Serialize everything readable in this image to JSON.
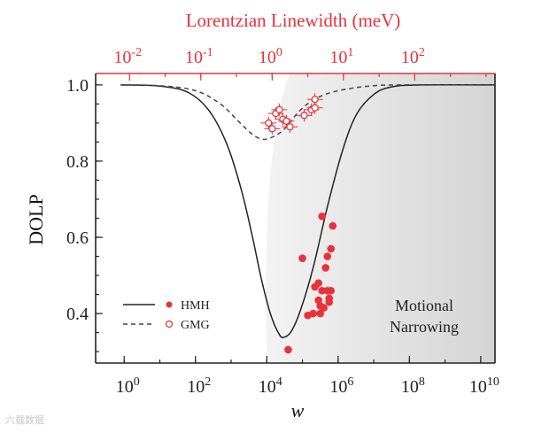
{
  "chart_data": {
    "type": "scatter",
    "title": "",
    "xlabel": "w",
    "ylabel": "DOLP",
    "top_xlabel": "Lorentzian Linewidth (meV)",
    "xscale": "log10",
    "xlim_log10": [
      -0.8,
      10.4
    ],
    "ylim": [
      0.27,
      1.03
    ],
    "x_ticks": [
      {
        "exp": 0,
        "base": "10",
        "sup": "0"
      },
      {
        "exp": 2,
        "base": "10",
        "sup": "2"
      },
      {
        "exp": 4,
        "base": "10",
        "sup": "4"
      },
      {
        "exp": 6,
        "base": "10",
        "sup": "6"
      },
      {
        "exp": 8,
        "base": "10",
        "sup": "8"
      },
      {
        "exp": 10,
        "base": "10",
        "sup": "10"
      }
    ],
    "y_ticks": [
      {
        "value": 0.4,
        "label": "0.4"
      },
      {
        "value": 0.6,
        "label": "0.6"
      },
      {
        "value": 0.8,
        "label": "0.8"
      },
      {
        "value": 1.0,
        "label": "1.0"
      }
    ],
    "top_ticks": [
      {
        "w_log10": 0.15,
        "base": "10",
        "sup": "-2"
      },
      {
        "w_log10": 2.15,
        "base": "10",
        "sup": "-1"
      },
      {
        "w_log10": 4.15,
        "base": "10",
        "sup": "0"
      },
      {
        "w_log10": 6.15,
        "base": "10",
        "sup": "1"
      },
      {
        "w_log10": 8.15,
        "base": "10",
        "sup": "2"
      }
    ],
    "shaded_region": {
      "label_line1": "Motional",
      "label_line2": "Narrowing",
      "start_log10_w": 4.0,
      "peak_log10_w": 4.3
    },
    "series": [
      {
        "name": "HMH",
        "style": "solid",
        "marker": "filled-circle",
        "curve": [
          [
            -0.1,
            1.0
          ],
          [
            1.0,
            0.997
          ],
          [
            1.8,
            0.98
          ],
          [
            2.4,
            0.93
          ],
          [
            2.9,
            0.84
          ],
          [
            3.3,
            0.72
          ],
          [
            3.6,
            0.6
          ],
          [
            3.85,
            0.49
          ],
          [
            4.1,
            0.4
          ],
          [
            4.35,
            0.345
          ],
          [
            4.5,
            0.338
          ],
          [
            4.7,
            0.355
          ],
          [
            4.95,
            0.41
          ],
          [
            5.3,
            0.52
          ],
          [
            5.7,
            0.68
          ],
          [
            6.1,
            0.82
          ],
          [
            6.5,
            0.92
          ],
          [
            7.0,
            0.975
          ],
          [
            7.5,
            0.995
          ],
          [
            8.3,
            1.0
          ],
          [
            10.4,
            1.0
          ]
        ],
        "points": [
          [
            4.6,
            0.305
          ],
          [
            5.0,
            0.545
          ],
          [
            5.15,
            0.395
          ],
          [
            5.3,
            0.4
          ],
          [
            5.35,
            0.47
          ],
          [
            5.45,
            0.48
          ],
          [
            5.45,
            0.435
          ],
          [
            5.5,
            0.42
          ],
          [
            5.5,
            0.4
          ],
          [
            5.55,
            0.46
          ],
          [
            5.55,
            0.655
          ],
          [
            5.6,
            0.415
          ],
          [
            5.65,
            0.52
          ],
          [
            5.7,
            0.55
          ],
          [
            5.7,
            0.46
          ],
          [
            5.75,
            0.44
          ],
          [
            5.75,
            0.43
          ],
          [
            5.8,
            0.46
          ],
          [
            5.8,
            0.57
          ],
          [
            5.85,
            0.63
          ]
        ]
      },
      {
        "name": "GMG",
        "style": "dashed",
        "marker": "open-circle",
        "curve": [
          [
            -0.1,
            1.0
          ],
          [
            1.0,
            0.998
          ],
          [
            2.0,
            0.985
          ],
          [
            2.7,
            0.95
          ],
          [
            3.2,
            0.905
          ],
          [
            3.6,
            0.87
          ],
          [
            3.9,
            0.857
          ],
          [
            4.2,
            0.865
          ],
          [
            4.5,
            0.885
          ],
          [
            4.9,
            0.93
          ],
          [
            5.3,
            0.96
          ],
          [
            5.8,
            0.98
          ],
          [
            6.5,
            0.993
          ],
          [
            7.2,
            0.999
          ],
          [
            8.0,
            1.0
          ],
          [
            10.4,
            1.0
          ]
        ],
        "points": [
          [
            4.05,
            0.9
          ],
          [
            4.15,
            0.885
          ],
          [
            4.25,
            0.925
          ],
          [
            4.35,
            0.935
          ],
          [
            4.45,
            0.91
          ],
          [
            4.55,
            0.905
          ],
          [
            4.65,
            0.89
          ],
          [
            5.05,
            0.92
          ],
          [
            5.25,
            0.935
          ],
          [
            5.35,
            0.94
          ],
          [
            5.35,
            0.962
          ]
        ]
      }
    ],
    "legend": [
      {
        "label": "HMH",
        "line": "solid",
        "marker": "filled-circle"
      },
      {
        "label": "GMG",
        "line": "dashed",
        "marker": "open-circle"
      }
    ],
    "legend_position": "lower-left"
  },
  "watermark": "六载数据"
}
